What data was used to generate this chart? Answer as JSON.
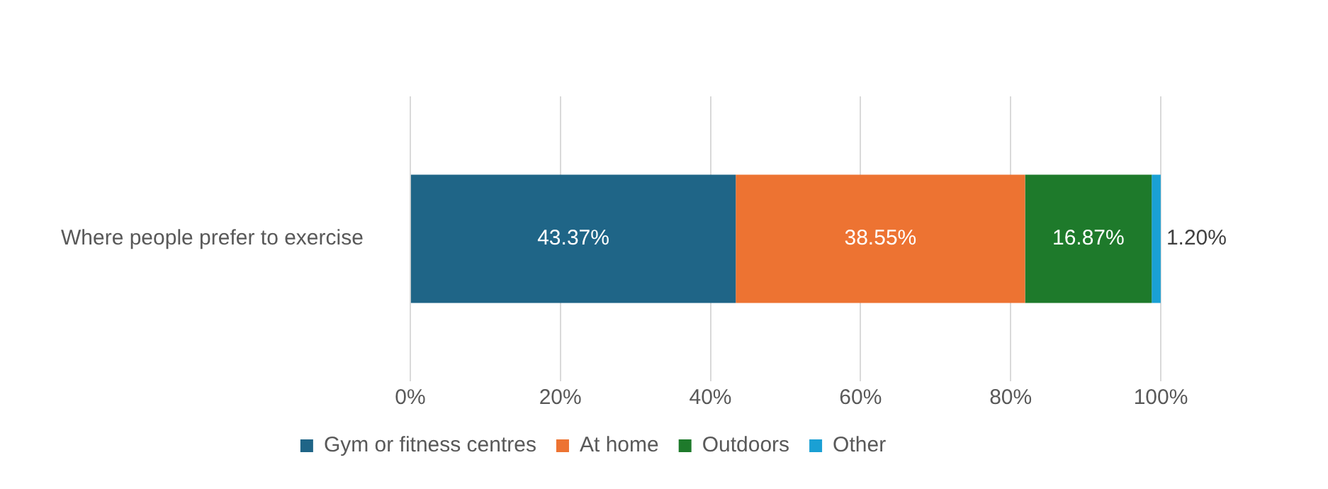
{
  "chart_data": {
    "type": "bar",
    "orientation": "horizontal",
    "stacked": true,
    "categories": [
      "Where people prefer to exercise"
    ],
    "series": [
      {
        "name": "Gym or fitness centres",
        "color": "#1f6587",
        "values": [
          43.37
        ],
        "value_labels": [
          "43.37%"
        ]
      },
      {
        "name": "At home",
        "color": "#ed7332",
        "values": [
          38.55
        ],
        "value_labels": [
          "38.55%"
        ]
      },
      {
        "name": "Outdoors",
        "color": "#1e7a2b",
        "values": [
          16.87
        ],
        "value_labels": [
          "16.87%"
        ]
      },
      {
        "name": "Other",
        "color": "#1aa0d4",
        "values": [
          1.2
        ],
        "value_labels": [
          "1.20%"
        ]
      }
    ],
    "xlim": [
      0,
      100
    ],
    "xticks": [
      {
        "value": 0,
        "label": "0%"
      },
      {
        "value": 20,
        "label": "20%"
      },
      {
        "value": 40,
        "label": "40%"
      },
      {
        "value": 60,
        "label": "60%"
      },
      {
        "value": 80,
        "label": "80%"
      },
      {
        "value": 100,
        "label": "100%"
      }
    ],
    "grid": "x",
    "legend": "bottom"
  }
}
